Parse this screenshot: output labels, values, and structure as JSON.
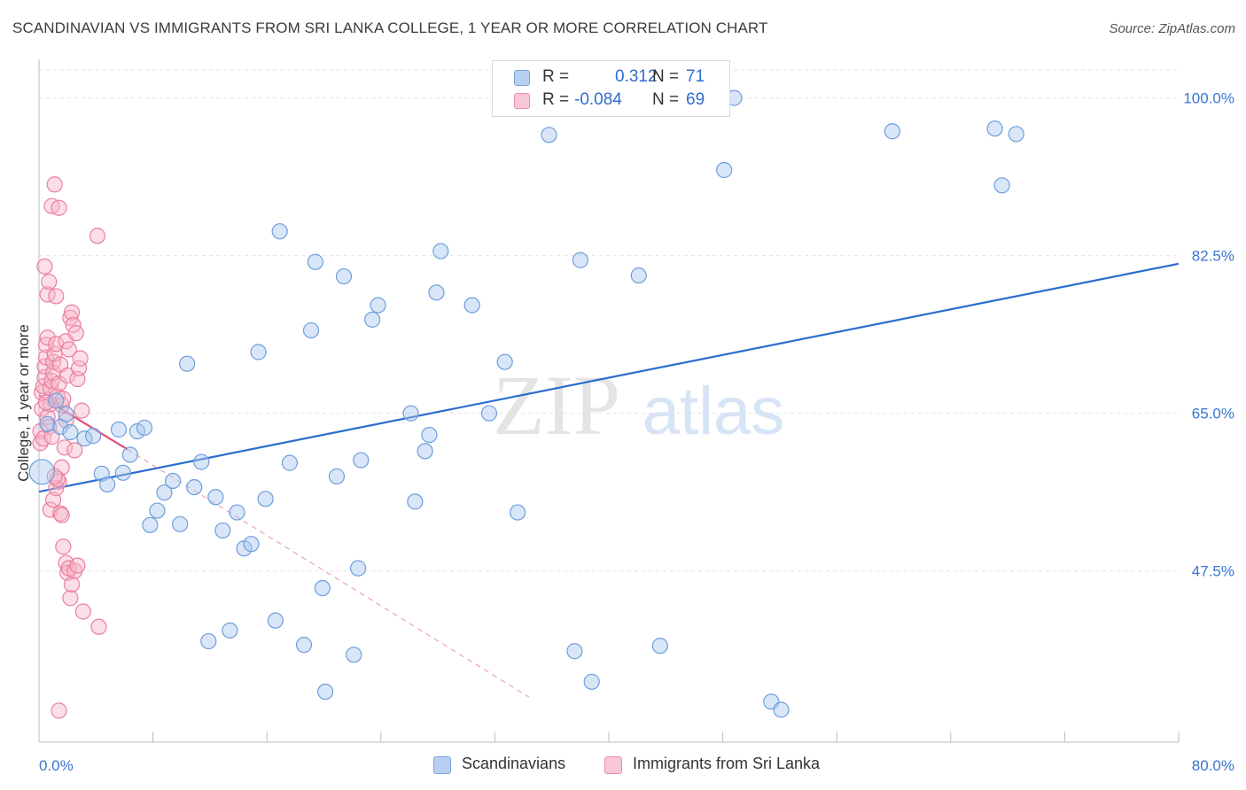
{
  "title": "SCANDINAVIAN VS IMMIGRANTS FROM SRI LANKA COLLEGE, 1 YEAR OR MORE CORRELATION CHART",
  "source": "Source: ZipAtlas.com",
  "watermark": {
    "zip": "ZIP",
    "atlas": "atlas"
  },
  "stats": {
    "r_label": "R =",
    "n_label": "N =",
    "blue": {
      "r": "0.312",
      "n": "71"
    },
    "pink": {
      "r": "-0.084",
      "n": "69"
    }
  },
  "colors": {
    "blue_fill": "#a9c7ee",
    "blue_stroke": "#6f9edc",
    "blue_line": "#2b6cd0",
    "pink_fill": "#f6b6c8",
    "pink_stroke": "#ea7fa0",
    "pink_line": "#e0507c",
    "axis_text": "#3a75d1",
    "grid": "#e3e3e3"
  },
  "chart_data": {
    "type": "scatter",
    "title": "SCANDINAVIAN VS IMMIGRANTS FROM SRI LANKA COLLEGE, 1 YEAR OR MORE CORRELATION CHART",
    "xlabel": "",
    "ylabel": "College, 1 year or more",
    "xlim": [
      0,
      80
    ],
    "ylim": [
      28.5,
      103.5
    ],
    "x_tick_labels": [
      "0.0%",
      "80.0%"
    ],
    "y_ticks": [
      47.5,
      65.0,
      82.5,
      100.0
    ],
    "y_tick_labels": [
      "47.5%",
      "65.0%",
      "82.5%",
      "100.0%"
    ],
    "legend": [
      "Scandinavians",
      "Immigrants from Sri Lanka"
    ],
    "legend_position": "bottom",
    "series": [
      {
        "name": "Scandinavians",
        "color": "#a9c7ee",
        "trend": {
          "x": [
            0,
            80
          ],
          "y": [
            56.3,
            81.6
          ],
          "style": "solid"
        },
        "points": [
          [
            0.2,
            58.5
          ],
          [
            0.6,
            63.8
          ],
          [
            1.2,
            66.4
          ],
          [
            1.5,
            63.5
          ],
          [
            1.9,
            64.9
          ],
          [
            2.2,
            62.9
          ],
          [
            3.2,
            62.2
          ],
          [
            3.8,
            62.5
          ],
          [
            4.4,
            58.3
          ],
          [
            4.8,
            57.1
          ],
          [
            5.6,
            63.2
          ],
          [
            5.9,
            58.4
          ],
          [
            6.4,
            60.4
          ],
          [
            6.9,
            63.0
          ],
          [
            7.4,
            63.4
          ],
          [
            7.8,
            52.6
          ],
          [
            8.3,
            54.2
          ],
          [
            8.8,
            56.2
          ],
          [
            9.4,
            57.5
          ],
          [
            9.9,
            52.7
          ],
          [
            10.4,
            70.5
          ],
          [
            10.9,
            56.8
          ],
          [
            11.4,
            59.6
          ],
          [
            11.9,
            39.7
          ],
          [
            12.4,
            55.7
          ],
          [
            12.9,
            52.0
          ],
          [
            13.4,
            40.9
          ],
          [
            13.9,
            54.0
          ],
          [
            14.4,
            50.0
          ],
          [
            14.9,
            50.5
          ],
          [
            15.4,
            71.8
          ],
          [
            15.9,
            55.5
          ],
          [
            16.6,
            42.0
          ],
          [
            16.9,
            85.2
          ],
          [
            17.6,
            59.5
          ],
          [
            18.6,
            39.3
          ],
          [
            19.1,
            74.2
          ],
          [
            19.4,
            81.8
          ],
          [
            19.9,
            45.6
          ],
          [
            20.1,
            34.1
          ],
          [
            20.9,
            58.0
          ],
          [
            21.4,
            80.2
          ],
          [
            22.1,
            38.2
          ],
          [
            22.4,
            47.8
          ],
          [
            22.6,
            59.8
          ],
          [
            23.4,
            75.4
          ],
          [
            23.8,
            77.0
          ],
          [
            26.1,
            65.0
          ],
          [
            26.4,
            55.2
          ],
          [
            27.1,
            60.8
          ],
          [
            27.4,
            62.6
          ],
          [
            27.9,
            78.4
          ],
          [
            28.2,
            83.0
          ],
          [
            30.4,
            77.0
          ],
          [
            31.6,
            65.0
          ],
          [
            32.7,
            70.7
          ],
          [
            33.6,
            54.0
          ],
          [
            35.8,
            95.9
          ],
          [
            37.6,
            38.6
          ],
          [
            38.0,
            82.0
          ],
          [
            38.8,
            35.2
          ],
          [
            42.1,
            80.3
          ],
          [
            43.6,
            39.2
          ],
          [
            48.1,
            92.0
          ],
          [
            48.8,
            100.0
          ],
          [
            51.4,
            33.0
          ],
          [
            52.1,
            32.1
          ],
          [
            59.9,
            96.3
          ],
          [
            67.1,
            96.6
          ],
          [
            67.6,
            90.3
          ],
          [
            68.6,
            96.0
          ]
        ]
      },
      {
        "name": "Immigrants from Sri Lanka",
        "color": "#f6b6c8",
        "trend": {
          "x": [
            0,
            6.2
          ],
          "y": [
            67.0,
            61.0
          ],
          "style": "solid",
          "extended_to": [
            34.4,
            33.5
          ],
          "extended_style": "dashed"
        },
        "points": [
          [
            0.1,
            63.0
          ],
          [
            0.1,
            61.7
          ],
          [
            0.2,
            65.5
          ],
          [
            0.2,
            67.3
          ],
          [
            0.3,
            68.0
          ],
          [
            0.4,
            69.0
          ],
          [
            0.4,
            70.2
          ],
          [
            0.5,
            71.2
          ],
          [
            0.5,
            72.6
          ],
          [
            0.6,
            73.4
          ],
          [
            0.6,
            64.6
          ],
          [
            0.7,
            63.5
          ],
          [
            0.8,
            66.0
          ],
          [
            0.8,
            67.8
          ],
          [
            0.9,
            68.6
          ],
          [
            1.0,
            69.5
          ],
          [
            1.0,
            70.7
          ],
          [
            1.1,
            71.6
          ],
          [
            1.2,
            72.7
          ],
          [
            1.3,
            66.9
          ],
          [
            1.4,
            68.3
          ],
          [
            1.4,
            57.4
          ],
          [
            1.5,
            70.4
          ],
          [
            1.6,
            65.9
          ],
          [
            1.6,
            59.0
          ],
          [
            1.7,
            66.6
          ],
          [
            1.8,
            61.2
          ],
          [
            1.9,
            73.0
          ],
          [
            2.0,
            69.2
          ],
          [
            2.1,
            72.1
          ],
          [
            2.2,
            75.6
          ],
          [
            2.3,
            76.2
          ],
          [
            2.4,
            74.8
          ],
          [
            2.5,
            60.9
          ],
          [
            2.6,
            73.9
          ],
          [
            2.7,
            68.8
          ],
          [
            2.8,
            70.0
          ],
          [
            2.9,
            71.1
          ],
          [
            3.0,
            65.3
          ],
          [
            0.4,
            81.3
          ],
          [
            0.6,
            78.2
          ],
          [
            0.7,
            79.6
          ],
          [
            0.9,
            88.0
          ],
          [
            1.1,
            90.4
          ],
          [
            1.2,
            78.0
          ],
          [
            1.4,
            87.8
          ],
          [
            4.1,
            84.7
          ],
          [
            0.8,
            54.3
          ],
          [
            1.0,
            55.4
          ],
          [
            1.2,
            56.7
          ],
          [
            1.3,
            57.7
          ],
          [
            1.5,
            53.9
          ],
          [
            1.6,
            53.7
          ],
          [
            1.7,
            50.2
          ],
          [
            1.9,
            48.4
          ],
          [
            2.0,
            47.3
          ],
          [
            2.1,
            47.8
          ],
          [
            2.2,
            44.5
          ],
          [
            2.3,
            46.0
          ],
          [
            2.5,
            47.5
          ],
          [
            2.7,
            48.1
          ],
          [
            3.1,
            43.0
          ],
          [
            4.2,
            41.3
          ],
          [
            1.4,
            32.0
          ],
          [
            0.3,
            62.2
          ],
          [
            0.5,
            66.2
          ],
          [
            0.9,
            62.4
          ],
          [
            1.1,
            58.0
          ],
          [
            1.9,
            64.2
          ]
        ]
      }
    ]
  }
}
